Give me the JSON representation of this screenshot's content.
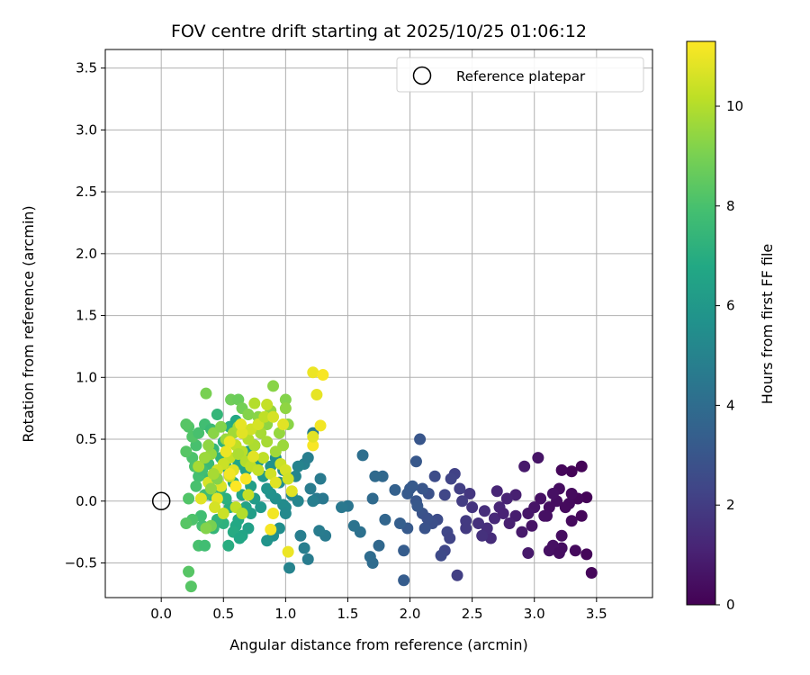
{
  "chart_data": {
    "type": "scatter",
    "title": "FOV centre drift starting at 2025/10/25 01:06:12",
    "xlabel": "Angular distance from reference (arcmin)",
    "ylabel": "Rotation from reference (arcmin)",
    "xlim": [
      -0.45,
      3.95
    ],
    "ylim": [
      -0.78,
      3.65
    ],
    "xticks": [
      0.0,
      0.5,
      1.0,
      1.5,
      2.0,
      2.5,
      3.0,
      3.5
    ],
    "xtick_labels": [
      "0.0",
      "0.5",
      "1.0",
      "1.5",
      "2.0",
      "2.5",
      "3.0",
      "3.5"
    ],
    "yticks": [
      -0.5,
      0.0,
      0.5,
      1.0,
      1.5,
      2.0,
      2.5,
      3.0,
      3.5
    ],
    "ytick_labels": [
      "−0.5",
      "0.0",
      "0.5",
      "1.0",
      "1.5",
      "2.0",
      "2.5",
      "3.0",
      "3.5"
    ],
    "grid": true,
    "legend": {
      "position": "top-right",
      "entries": [
        "Reference platepar"
      ]
    },
    "reference_point": {
      "x": 0.0,
      "y": 0.0
    },
    "colorbar": {
      "label": "Hours from first FF file",
      "colormap": "viridis",
      "range": [
        0,
        11.3
      ],
      "ticks": [
        0,
        2,
        4,
        6,
        8,
        10
      ],
      "tick_labels": [
        "0",
        "2",
        "4",
        "6",
        "8",
        "10"
      ]
    },
    "points": [
      [
        3.38,
        0.28,
        0.1
      ],
      [
        3.3,
        0.24,
        0.1
      ],
      [
        3.22,
        0.25,
        0.2
      ],
      [
        3.42,
        0.03,
        0.1
      ],
      [
        3.35,
        0.02,
        0.2
      ],
      [
        3.28,
        -0.02,
        0.3
      ],
      [
        3.18,
        0.0,
        0.4
      ],
      [
        3.12,
        -0.05,
        0.4
      ],
      [
        3.05,
        0.02,
        0.5
      ],
      [
        3.38,
        -0.12,
        0.2
      ],
      [
        3.3,
        -0.16,
        0.3
      ],
      [
        3.25,
        -0.05,
        0.3
      ],
      [
        3.2,
        0.1,
        0.4
      ],
      [
        3.15,
        0.06,
        0.5
      ],
      [
        3.1,
        -0.12,
        0.5
      ],
      [
        3.0,
        -0.05,
        0.6
      ],
      [
        2.95,
        -0.1,
        0.7
      ],
      [
        3.46,
        -0.58,
        0.2
      ],
      [
        3.42,
        -0.43,
        0.2
      ],
      [
        3.33,
        -0.4,
        0.3
      ],
      [
        3.22,
        -0.38,
        0.4
      ],
      [
        3.15,
        -0.36,
        0.5
      ],
      [
        3.12,
        -0.4,
        0.5
      ],
      [
        3.22,
        -0.28,
        0.4
      ],
      [
        3.03,
        0.35,
        0.6
      ],
      [
        2.92,
        0.28,
        0.8
      ],
      [
        2.98,
        -0.2,
        0.6
      ],
      [
        2.9,
        -0.25,
        0.8
      ],
      [
        2.85,
        -0.12,
        0.9
      ],
      [
        2.95,
        -0.42,
        0.8
      ],
      [
        3.2,
        -0.42,
        0.4
      ],
      [
        3.08,
        -0.12,
        0.5
      ],
      [
        3.3,
        0.06,
        0.3
      ],
      [
        2.85,
        0.05,
        1.0
      ],
      [
        2.78,
        0.02,
        1.1
      ],
      [
        2.72,
        -0.05,
        1.2
      ],
      [
        2.8,
        -0.18,
        1.0
      ],
      [
        2.68,
        -0.14,
        1.3
      ],
      [
        2.65,
        -0.3,
        1.4
      ],
      [
        2.7,
        0.08,
        1.2
      ],
      [
        2.6,
        -0.08,
        1.5
      ],
      [
        2.62,
        -0.22,
        1.5
      ],
      [
        2.75,
        -0.1,
        1.1
      ],
      [
        2.58,
        -0.28,
        1.6
      ],
      [
        2.5,
        -0.05,
        1.7
      ],
      [
        2.55,
        -0.18,
        1.6
      ],
      [
        2.48,
        0.06,
        1.8
      ],
      [
        2.42,
        0.0,
        2.0
      ],
      [
        2.4,
        0.1,
        2.1
      ],
      [
        2.36,
        0.22,
        2.2
      ],
      [
        2.33,
        0.18,
        2.3
      ],
      [
        2.45,
        -0.16,
        1.9
      ],
      [
        2.38,
        -0.6,
        2.1
      ],
      [
        2.3,
        -0.25,
        2.4
      ],
      [
        2.28,
        -0.4,
        2.4
      ],
      [
        2.25,
        -0.44,
        2.5
      ],
      [
        2.22,
        -0.15,
        2.6
      ],
      [
        2.28,
        0.05,
        2.4
      ],
      [
        2.2,
        0.2,
        2.6
      ],
      [
        2.15,
        0.06,
        2.8
      ],
      [
        2.1,
        -0.1,
        2.9
      ],
      [
        2.18,
        -0.18,
        2.7
      ],
      [
        2.05,
        0.0,
        3.0
      ],
      [
        2.45,
        -0.22,
        1.9
      ],
      [
        2.32,
        -0.3,
        2.3
      ],
      [
        2.08,
        0.5,
        3.0
      ],
      [
        2.05,
        0.32,
        3.1
      ],
      [
        2.0,
        0.1,
        3.2
      ],
      [
        1.98,
        -0.22,
        3.2
      ],
      [
        1.95,
        -0.64,
        3.3
      ],
      [
        1.92,
        -0.18,
        3.4
      ],
      [
        2.1,
        0.1,
        3.0
      ],
      [
        2.02,
        0.12,
        3.2
      ],
      [
        2.06,
        -0.04,
        3.1
      ],
      [
        2.12,
        -0.22,
        2.9
      ],
      [
        2.14,
        -0.14,
        2.8
      ],
      [
        1.98,
        0.06,
        3.2
      ],
      [
        1.88,
        0.09,
        3.5
      ],
      [
        1.95,
        -0.4,
        3.3
      ],
      [
        1.78,
        0.2,
        3.8
      ],
      [
        1.72,
        0.2,
        3.9
      ],
      [
        1.75,
        -0.36,
        3.8
      ],
      [
        1.7,
        0.02,
        3.9
      ],
      [
        1.62,
        0.37,
        4.1
      ],
      [
        1.68,
        -0.45,
        4.0
      ],
      [
        1.7,
        -0.5,
        4.0
      ],
      [
        1.6,
        -0.25,
        4.2
      ],
      [
        1.55,
        -0.2,
        4.3
      ],
      [
        1.8,
        -0.15,
        3.7
      ],
      [
        1.5,
        -0.04,
        4.4
      ],
      [
        1.45,
        -0.05,
        4.5
      ],
      [
        1.25,
        0.02,
        4.6
      ],
      [
        1.3,
        0.02,
        4.5
      ],
      [
        1.2,
        0.1,
        4.7
      ],
      [
        1.15,
        0.3,
        4.9
      ],
      [
        1.28,
        0.18,
        4.6
      ],
      [
        1.32,
        -0.28,
        4.6
      ],
      [
        1.27,
        -0.24,
        4.7
      ],
      [
        1.12,
        -0.28,
        4.8
      ],
      [
        1.15,
        -0.38,
        4.8
      ],
      [
        1.18,
        -0.47,
        4.7
      ],
      [
        1.03,
        -0.54,
        5.0
      ],
      [
        1.22,
        0.0,
        4.8
      ],
      [
        1.1,
        0.0,
        5.1
      ],
      [
        1.05,
        0.05,
        5.2
      ],
      [
        1.0,
        -0.05,
        5.3
      ],
      [
        0.98,
        -0.03,
        5.4
      ],
      [
        1.0,
        -0.1,
        5.3
      ],
      [
        0.92,
        0.02,
        5.6
      ],
      [
        0.88,
        0.06,
        5.7
      ],
      [
        0.95,
        -0.22,
        5.5
      ],
      [
        0.9,
        -0.28,
        5.6
      ],
      [
        0.85,
        -0.32,
        5.8
      ],
      [
        1.1,
        0.28,
        5.0
      ],
      [
        1.08,
        0.2,
        5.1
      ],
      [
        1.22,
        0.55,
        4.7
      ],
      [
        1.18,
        0.35,
        4.8
      ],
      [
        0.8,
        -0.05,
        6.0
      ],
      [
        0.75,
        0.02,
        6.2
      ],
      [
        0.72,
        -0.1,
        6.3
      ],
      [
        0.7,
        -0.22,
        6.4
      ],
      [
        0.68,
        -0.05,
        6.5
      ],
      [
        0.65,
        0.05,
        6.6
      ],
      [
        0.62,
        -0.15,
        6.7
      ],
      [
        0.65,
        -0.28,
        6.6
      ],
      [
        0.6,
        -0.2,
        6.8
      ],
      [
        0.58,
        -0.25,
        6.9
      ],
      [
        0.55,
        -0.05,
        7.0
      ],
      [
        0.52,
        0.02,
        7.1
      ],
      [
        0.5,
        -0.18,
        7.2
      ],
      [
        0.45,
        -0.15,
        7.3
      ],
      [
        0.42,
        -0.22,
        7.4
      ],
      [
        0.48,
        0.1,
        7.3
      ],
      [
        0.4,
        0.05,
        7.5
      ],
      [
        0.38,
        0.18,
        7.6
      ],
      [
        0.35,
        0.05,
        7.7
      ],
      [
        0.32,
        -0.12,
        7.8
      ],
      [
        0.3,
        0.2,
        7.9
      ],
      [
        0.28,
        0.12,
        8.0
      ],
      [
        0.25,
        -0.15,
        8.1
      ],
      [
        0.22,
        0.02,
        8.2
      ],
      [
        0.2,
        -0.18,
        8.3
      ],
      [
        0.25,
        0.35,
        8.1
      ],
      [
        0.28,
        0.45,
        8.0
      ],
      [
        0.22,
        0.6,
        8.2
      ],
      [
        0.2,
        0.62,
        8.3
      ],
      [
        0.25,
        0.52,
        8.2
      ],
      [
        0.3,
        0.55,
        8.0
      ],
      [
        0.35,
        0.62,
        7.8
      ],
      [
        0.4,
        0.58,
        7.6
      ],
      [
        0.45,
        0.7,
        7.4
      ],
      [
        0.5,
        0.48,
        7.2
      ],
      [
        0.55,
        0.6,
        7.0
      ],
      [
        0.6,
        0.65,
        6.8
      ],
      [
        0.3,
        -0.36,
        8.0
      ],
      [
        0.35,
        -0.36,
        7.8
      ],
      [
        0.22,
        -0.57,
        8.3
      ],
      [
        0.24,
        -0.69,
        8.3
      ],
      [
        0.33,
        -0.2,
        7.9
      ],
      [
        0.68,
        0.25,
        6.5
      ],
      [
        0.72,
        0.12,
        6.3
      ],
      [
        0.78,
        0.32,
        6.1
      ],
      [
        0.82,
        0.2,
        6.0
      ],
      [
        0.85,
        0.1,
        5.8
      ],
      [
        0.75,
        0.45,
        6.2
      ],
      [
        0.7,
        0.4,
        6.4
      ],
      [
        0.62,
        0.3,
        6.7
      ],
      [
        0.58,
        0.15,
        6.9
      ],
      [
        0.52,
        0.28,
        7.1
      ],
      [
        0.48,
        0.35,
        7.2
      ],
      [
        0.42,
        0.42,
        7.4
      ],
      [
        0.38,
        0.3,
        7.6
      ],
      [
        0.33,
        0.25,
        7.8
      ],
      [
        0.2,
        0.4,
        8.3
      ],
      [
        0.27,
        0.28,
        8.1
      ],
      [
        0.54,
        -0.36,
        7.0
      ],
      [
        0.63,
        -0.3,
        6.7
      ],
      [
        0.95,
        0.15,
        5.5
      ],
      [
        0.98,
        0.25,
        5.4
      ],
      [
        0.92,
        0.35,
        5.6
      ],
      [
        0.88,
        0.28,
        5.7
      ],
      [
        0.36,
        0.87,
        9.0
      ],
      [
        0.56,
        0.82,
        8.8
      ],
      [
        0.62,
        0.82,
        8.7
      ],
      [
        0.65,
        0.75,
        8.9
      ],
      [
        0.7,
        0.7,
        9.2
      ],
      [
        0.78,
        0.68,
        9.3
      ],
      [
        0.85,
        0.62,
        9.4
      ],
      [
        0.88,
        0.73,
        9.5
      ],
      [
        0.9,
        0.93,
        9.3
      ],
      [
        1.0,
        0.82,
        9.2
      ],
      [
        1.0,
        0.75,
        9.4
      ],
      [
        1.02,
        0.62,
        9.3
      ],
      [
        0.95,
        0.55,
        9.5
      ],
      [
        0.98,
        0.45,
        9.6
      ],
      [
        0.92,
        0.4,
        9.7
      ],
      [
        0.85,
        0.48,
        9.8
      ],
      [
        0.8,
        0.55,
        9.8
      ],
      [
        0.75,
        0.45,
        9.9
      ],
      [
        0.7,
        0.5,
        10.0
      ],
      [
        0.65,
        0.4,
        10.1
      ],
      [
        0.6,
        0.45,
        10.2
      ],
      [
        0.55,
        0.35,
        10.3
      ],
      [
        0.5,
        0.3,
        10.4
      ],
      [
        0.45,
        0.25,
        10.5
      ],
      [
        0.4,
        0.38,
        9.5
      ],
      [
        0.38,
        0.45,
        9.4
      ],
      [
        0.42,
        0.55,
        9.3
      ],
      [
        0.48,
        0.6,
        9.2
      ],
      [
        0.52,
        0.5,
        9.6
      ],
      [
        0.58,
        0.55,
        9.7
      ],
      [
        0.62,
        0.38,
        9.9
      ],
      [
        0.68,
        0.32,
        10.0
      ],
      [
        0.72,
        0.28,
        10.2
      ],
      [
        0.78,
        0.25,
        10.3
      ],
      [
        0.82,
        0.35,
        10.2
      ],
      [
        0.88,
        0.22,
        10.5
      ],
      [
        0.92,
        0.15,
        10.8
      ],
      [
        0.96,
        0.3,
        10.4
      ],
      [
        1.0,
        0.25,
        10.6
      ],
      [
        0.55,
        0.2,
        10.5
      ],
      [
        0.48,
        0.12,
        10.7
      ],
      [
        0.45,
        0.02,
        10.9
      ],
      [
        0.38,
        0.15,
        10.6
      ],
      [
        0.32,
        0.02,
        10.8
      ],
      [
        0.3,
        0.28,
        9.8
      ],
      [
        0.35,
        0.35,
        9.6
      ],
      [
        0.43,
        -0.05,
        10.6
      ],
      [
        0.5,
        -0.1,
        10.4
      ],
      [
        0.6,
        -0.05,
        10.2
      ],
      [
        0.65,
        -0.1,
        10.0
      ],
      [
        0.7,
        0.05,
        10.3
      ],
      [
        0.62,
        0.6,
        9.8
      ],
      [
        0.75,
        0.79,
        10.0
      ],
      [
        0.85,
        0.78,
        10.3
      ],
      [
        0.72,
        0.58,
        10.5
      ],
      [
        0.78,
        0.62,
        10.6
      ],
      [
        0.83,
        0.68,
        10.2
      ],
      [
        0.9,
        0.68,
        10.6
      ],
      [
        0.65,
        0.55,
        10.8
      ],
      [
        0.58,
        0.25,
        10.8
      ],
      [
        0.55,
        0.48,
        11.0
      ],
      [
        0.4,
        0.1,
        9.4
      ],
      [
        0.45,
        0.18,
        9.2
      ],
      [
        0.4,
        -0.2,
        9.0
      ],
      [
        0.36,
        -0.22,
        9.2
      ],
      [
        0.42,
        0.22,
        9.8
      ],
      [
        0.98,
        0.62,
        10.8
      ],
      [
        1.02,
        0.18,
        10.5
      ],
      [
        1.05,
        0.08,
        10.8
      ],
      [
        0.9,
        -0.1,
        11.1
      ],
      [
        0.88,
        -0.23,
        11.2
      ],
      [
        1.02,
        -0.41,
        11.0
      ],
      [
        1.22,
        1.04,
        11.0
      ],
      [
        1.3,
        1.02,
        11.2
      ],
      [
        1.25,
        0.86,
        10.9
      ],
      [
        1.28,
        0.61,
        11.1
      ],
      [
        1.22,
        0.45,
        11.2
      ],
      [
        1.22,
        0.52,
        10.8
      ],
      [
        0.6,
        0.12,
        11.3
      ],
      [
        0.55,
        0.22,
        11.1
      ],
      [
        0.52,
        0.4,
        11.0
      ],
      [
        0.68,
        0.18,
        11.2
      ],
      [
        0.74,
        0.36,
        10.8
      ],
      [
        0.64,
        0.62,
        10.9
      ]
    ]
  }
}
